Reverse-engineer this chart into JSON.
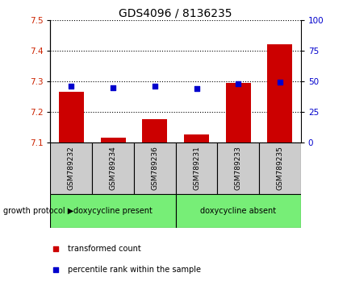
{
  "title": "GDS4096 / 8136235",
  "samples": [
    "GSM789232",
    "GSM789234",
    "GSM789236",
    "GSM789231",
    "GSM789233",
    "GSM789235"
  ],
  "transformed_counts": [
    7.265,
    7.115,
    7.175,
    7.125,
    7.295,
    7.42
  ],
  "percentile_ranks": [
    46,
    45,
    46,
    44,
    48,
    49
  ],
  "ylim_left": [
    7.1,
    7.5
  ],
  "ylim_right": [
    0,
    100
  ],
  "yticks_left": [
    7.1,
    7.2,
    7.3,
    7.4,
    7.5
  ],
  "yticks_right": [
    0,
    25,
    50,
    75,
    100
  ],
  "bar_color": "#cc0000",
  "dot_color": "#0000cc",
  "bar_bottom": 7.1,
  "group1_label": "doxycycline present",
  "group2_label": "doxycycline absent",
  "group1_indices": [
    0,
    1,
    2
  ],
  "group2_indices": [
    3,
    4,
    5
  ],
  "group_bg_color": "#77ee77",
  "sample_box_color": "#cccccc",
  "protocol_label": "growth protocol",
  "legend_bar_label": "transformed count",
  "legend_dot_label": "percentile rank within the sample",
  "title_fontsize": 10,
  "tick_label_color_left": "#cc2200",
  "tick_label_color_right": "#0000cc",
  "bg_color": "#ffffff"
}
